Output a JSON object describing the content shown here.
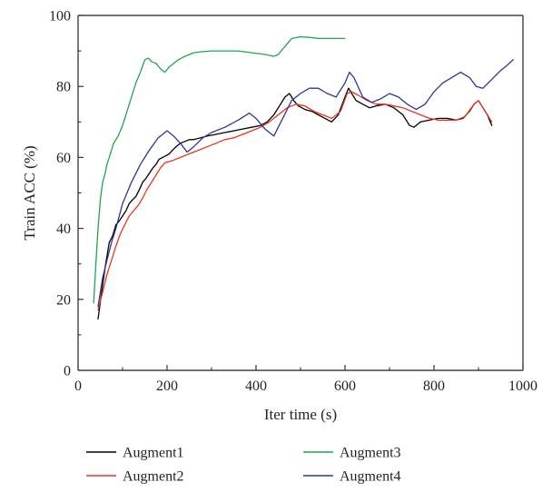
{
  "chart_data": {
    "type": "line",
    "title": "",
    "xlabel": "Iter time (s)",
    "ylabel": "Train ACC (%)",
    "xlim": [
      0,
      1000
    ],
    "ylim": [
      0,
      100
    ],
    "xticks": [
      0,
      200,
      400,
      600,
      800,
      1000
    ],
    "yticks": [
      0,
      20,
      40,
      60,
      80,
      100
    ],
    "grid": false,
    "legend_position": "bottom",
    "series": [
      {
        "name": "Augment1",
        "color": "#000000",
        "x": [
          45,
          55,
          62,
          70,
          78,
          85,
          92,
          100,
          108,
          115,
          122,
          130,
          138,
          145,
          152,
          160,
          168,
          175,
          182,
          190,
          198,
          205,
          212,
          220,
          230,
          240,
          250,
          260,
          275,
          290,
          310,
          330,
          350,
          370,
          390,
          410,
          425,
          440,
          455,
          465,
          475,
          485,
          495,
          510,
          525,
          540,
          555,
          570,
          585,
          600,
          608,
          615,
          625,
          640,
          655,
          670,
          690,
          710,
          730,
          745,
          755,
          770,
          790,
          810,
          830,
          850,
          865,
          880,
          890,
          900,
          910,
          920,
          930
        ],
        "y": [
          14.5,
          24,
          30,
          36,
          38,
          41,
          42,
          43.5,
          45,
          47,
          48,
          49,
          51,
          53,
          54,
          55.5,
          57,
          58,
          59.5,
          60,
          60.5,
          61,
          62,
          63,
          64,
          64.5,
          65,
          65,
          65.5,
          66,
          66.5,
          67,
          67.5,
          68,
          68.5,
          69,
          70,
          72,
          75,
          77,
          78,
          76,
          74.5,
          73.5,
          73,
          72,
          71,
          70,
          72,
          77,
          79.5,
          78,
          76,
          75,
          74,
          74.5,
          75,
          74,
          72,
          69,
          68.5,
          70,
          70.5,
          71,
          71,
          70.5,
          71,
          73,
          75,
          76,
          74,
          72,
          69
        ]
      },
      {
        "name": "Augment2",
        "color": "#e8351e",
        "x": [
          45,
          55,
          65,
          75,
          85,
          95,
          105,
          115,
          125,
          135,
          145,
          155,
          165,
          175,
          185,
          195,
          210,
          230,
          250,
          270,
          290,
          310,
          330,
          350,
          370,
          390,
          410,
          430,
          450,
          470,
          490,
          510,
          530,
          550,
          570,
          590,
          605,
          615,
          630,
          650,
          670,
          690,
          710,
          730,
          750,
          770,
          790,
          810,
          830,
          850,
          870,
          890,
          900,
          910,
          920,
          930
        ],
        "y": [
          17,
          22,
          27,
          31,
          35,
          38.5,
          41,
          43.5,
          45,
          46.5,
          48.5,
          51,
          53,
          55,
          57,
          58.5,
          59,
          60,
          61,
          62,
          63,
          64,
          65,
          65.5,
          66.5,
          67.5,
          68.5,
          70,
          72,
          74,
          75,
          74.5,
          73,
          72,
          71,
          73,
          78,
          78.5,
          77.5,
          76,
          75,
          75,
          74.5,
          74,
          73,
          72,
          71,
          70.5,
          70.5,
          70.5,
          71.5,
          75,
          76,
          74,
          72,
          70
        ]
      },
      {
        "name": "Augment3",
        "color": "#1fa64a",
        "x": [
          35,
          40,
          45,
          50,
          55,
          60,
          65,
          70,
          75,
          80,
          90,
          100,
          110,
          120,
          130,
          140,
          150,
          158,
          165,
          175,
          185,
          195,
          205,
          215,
          225,
          240,
          260,
          280,
          300,
          330,
          360,
          390,
          420,
          440,
          450,
          460,
          470,
          480,
          500,
          520,
          540,
          560,
          580,
          600
        ],
        "y": [
          19,
          30,
          40,
          48,
          53,
          55,
          58,
          60,
          62,
          64,
          66,
          69,
          73,
          77,
          81,
          84,
          87.5,
          88,
          87,
          86.5,
          85,
          84,
          85.5,
          86.5,
          87.5,
          88.5,
          89.5,
          89.8,
          90,
          90,
          90,
          89.5,
          89,
          88.5,
          89,
          90.5,
          92,
          93.5,
          94,
          93.8,
          93.5,
          93.5,
          93.5,
          93.5
        ]
      },
      {
        "name": "Augment4",
        "color": "#2d3596",
        "x": [
          45,
          55,
          65,
          75,
          85,
          100,
          120,
          140,
          160,
          180,
          200,
          215,
          230,
          245,
          260,
          280,
          300,
          330,
          360,
          385,
          400,
          420,
          440,
          460,
          480,
          500,
          520,
          540,
          560,
          580,
          600,
          610,
          620,
          640,
          660,
          680,
          700,
          720,
          740,
          760,
          780,
          800,
          820,
          840,
          860,
          880,
          895,
          910,
          930,
          950,
          965,
          978
        ],
        "y": [
          18,
          26,
          31,
          36,
          40,
          47,
          53,
          58,
          62,
          65.5,
          67.5,
          66,
          64,
          61.5,
          63,
          65.5,
          67,
          68.5,
          70.5,
          72.5,
          71,
          68,
          66,
          71,
          76,
          78,
          79.5,
          79.5,
          78,
          77,
          81,
          84,
          82.5,
          77,
          75.5,
          76.5,
          78,
          77,
          75,
          73.5,
          75,
          78.5,
          81,
          82.5,
          84,
          82.5,
          80,
          79.5,
          82,
          84.5,
          86,
          87.5
        ]
      }
    ]
  }
}
